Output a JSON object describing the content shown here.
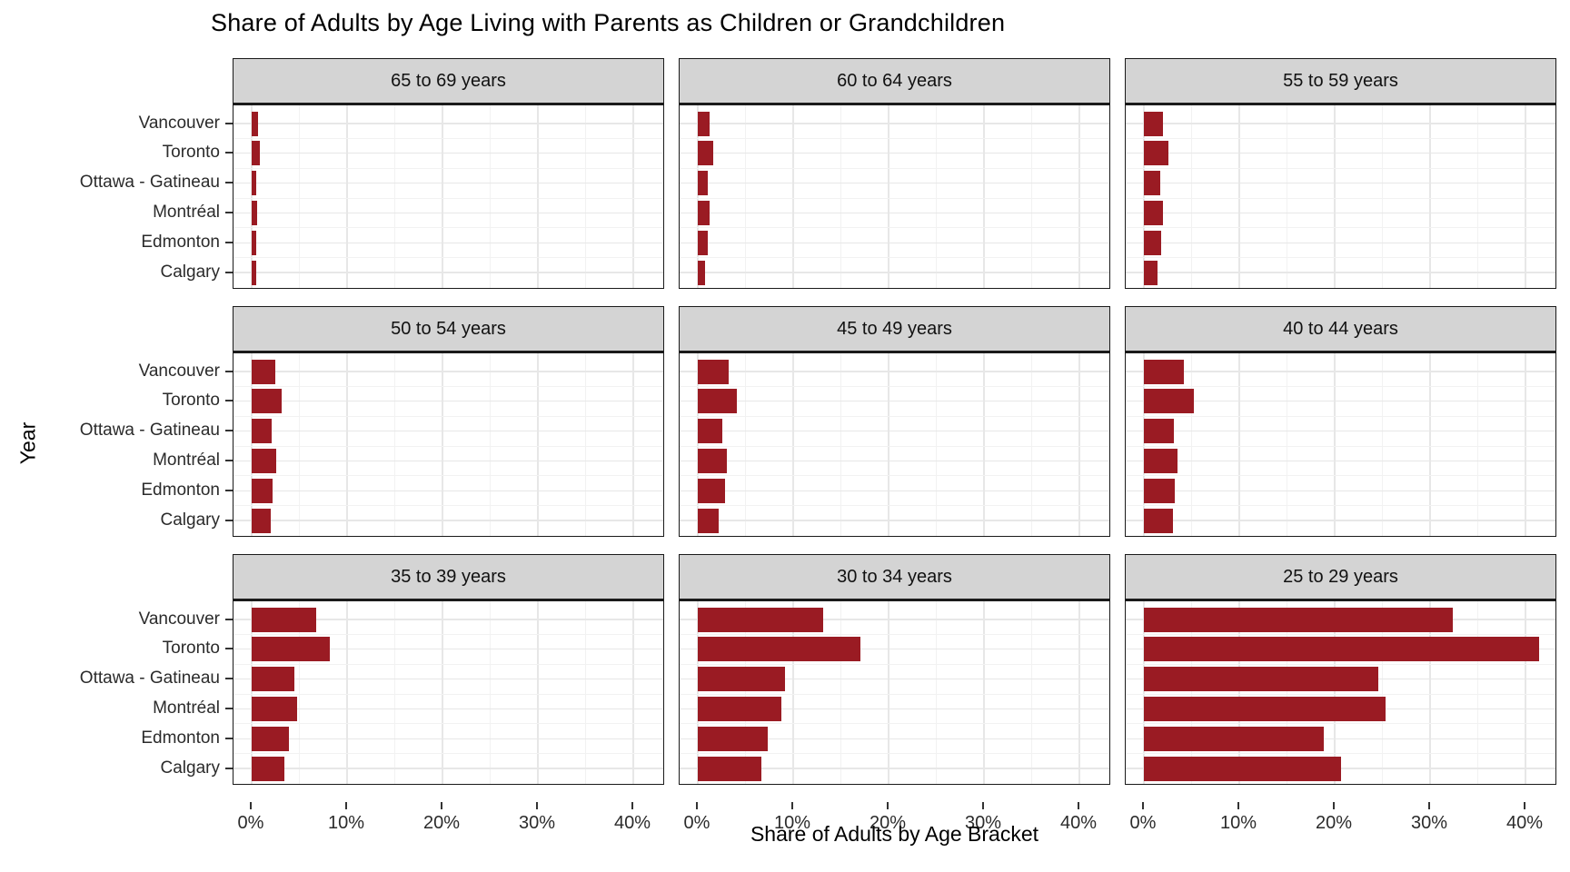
{
  "chart_data": {
    "type": "bar",
    "orientation": "horizontal",
    "title": "Share of Adults by Age Living with Parents as Children or Grandchildren",
    "xlabel": "Share of Adults by Age Bracket",
    "ylabel": "Year",
    "categories": [
      "Vancouver",
      "Toronto",
      "Ottawa - Gatineau",
      "Montréal",
      "Edmonton",
      "Calgary"
    ],
    "x_ticks": [
      {
        "value": 0,
        "label": "0%"
      },
      {
        "value": 10,
        "label": "10%"
      },
      {
        "value": 20,
        "label": "20%"
      },
      {
        "value": 30,
        "label": "30%"
      },
      {
        "value": 40,
        "label": "40%"
      }
    ],
    "x_minor_ticks": [
      5,
      15,
      25,
      35
    ],
    "xlim": [
      -2,
      43.2
    ],
    "grid": true,
    "legend": false,
    "facet_layout": {
      "rows": 3,
      "cols": 3
    },
    "facets": [
      {
        "label": "65 to 69 years",
        "values": [
          0.7,
          0.9,
          0.5,
          0.6,
          0.5,
          0.5
        ]
      },
      {
        "label": "60 to 64 years",
        "values": [
          1.2,
          1.6,
          1.0,
          1.2,
          1.0,
          0.8
        ]
      },
      {
        "label": "55 to 59 years",
        "values": [
          2.0,
          2.6,
          1.7,
          2.0,
          1.8,
          1.4
        ]
      },
      {
        "label": "50 to 54 years",
        "values": [
          2.5,
          3.1,
          2.1,
          2.6,
          2.2,
          2.0
        ]
      },
      {
        "label": "45 to 49 years",
        "values": [
          3.2,
          4.1,
          2.6,
          3.0,
          2.9,
          2.2
        ]
      },
      {
        "label": "40 to 44 years",
        "values": [
          4.2,
          5.2,
          3.1,
          3.5,
          3.2,
          3.0
        ]
      },
      {
        "label": "35 to 39 years",
        "values": [
          6.8,
          8.2,
          4.5,
          4.8,
          3.9,
          3.4
        ]
      },
      {
        "label": "30 to 34 years",
        "values": [
          13.1,
          17.0,
          9.1,
          8.8,
          7.3,
          6.7
        ]
      },
      {
        "label": "25 to 29 years",
        "values": [
          32.4,
          41.4,
          24.6,
          25.3,
          18.9,
          20.7
        ]
      }
    ],
    "colors": {
      "bar": "#9a1b23",
      "strip_background": "#d4d4d4",
      "panel_border": "#1a1a1a",
      "grid_major": "#e7e7e7",
      "grid_minor": "#f2f2f2",
      "axis_text": "#2b2b2b"
    }
  }
}
